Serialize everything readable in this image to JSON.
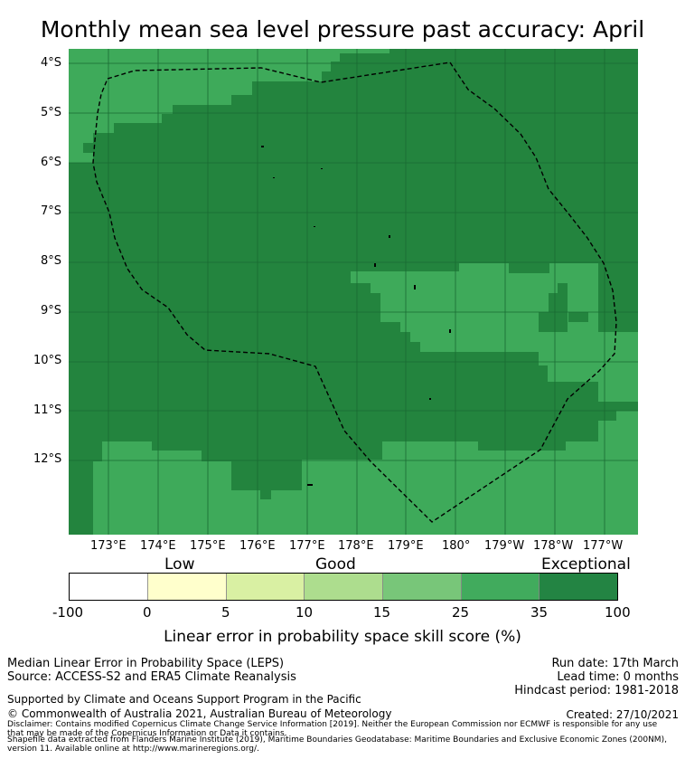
{
  "title": "Monthly mean sea level pressure past accuracy: April",
  "map": {
    "lat_labels": [
      "4°S",
      "5°S",
      "6°S",
      "7°S",
      "8°S",
      "9°S",
      "10°S",
      "11°S",
      "12°S"
    ],
    "lon_labels": [
      "173°E",
      "174°E",
      "175°E",
      "176°E",
      "177°E",
      "178°E",
      "179°E",
      "180°",
      "179°W",
      "178°W",
      "177°W"
    ],
    "boundary": "Tuvalu EEZ (dashed)",
    "legend_colors": {
      "exceptional_dark": "#23843e",
      "exceptional_light": "#3eaa5a",
      "grid_line": "#1a6a33",
      "boundary": "#000000"
    }
  },
  "colorbar": {
    "categories": [
      "Low",
      "Good",
      "Exceptional"
    ],
    "ticks": [
      "-100",
      "0",
      "5",
      "10",
      "15",
      "25",
      "35",
      "100"
    ],
    "colors": [
      "#ffffff",
      "#ffffcc",
      "#d9f0a3",
      "#addd8e",
      "#78c679",
      "#41ab5d",
      "#238443"
    ],
    "label": "Linear error in probability space skill score (%)"
  },
  "footer": {
    "line1": "Median Linear Error in Probability Space (LEPS)",
    "line2": "Source: ACCESS-S2 and ERA5 Climate Reanalysis",
    "run_date": "Run date: 17th March",
    "lead_time": "Lead time: 0 months",
    "hindcast": "Hindcast period: 1981-2018",
    "supported": "Supported by Climate and Oceans Support Program in the Pacific",
    "copyright": "© Commonwealth of Australia 2021, Australian Bureau of Meteorology",
    "created": "Created: 27/10/2021",
    "disclaimer1": "Disclaimer: Contains modified Copernicus Climate Change Service Information [2019]. Neither the European Commission nor ECMWF is responsible for any use",
    "disclaimer2": "that may be made of the Copernicus Information or Data it contains.",
    "disclaimer3": "Shapefile data extracted from Flanders Marine Institute (2019), Maritime Boundaries Geodatabase: Maritime Boundaries and Exclusive Economic Zones (200NM),",
    "disclaimer4": "version 11. Available online at http://www.marineregions.org/."
  }
}
